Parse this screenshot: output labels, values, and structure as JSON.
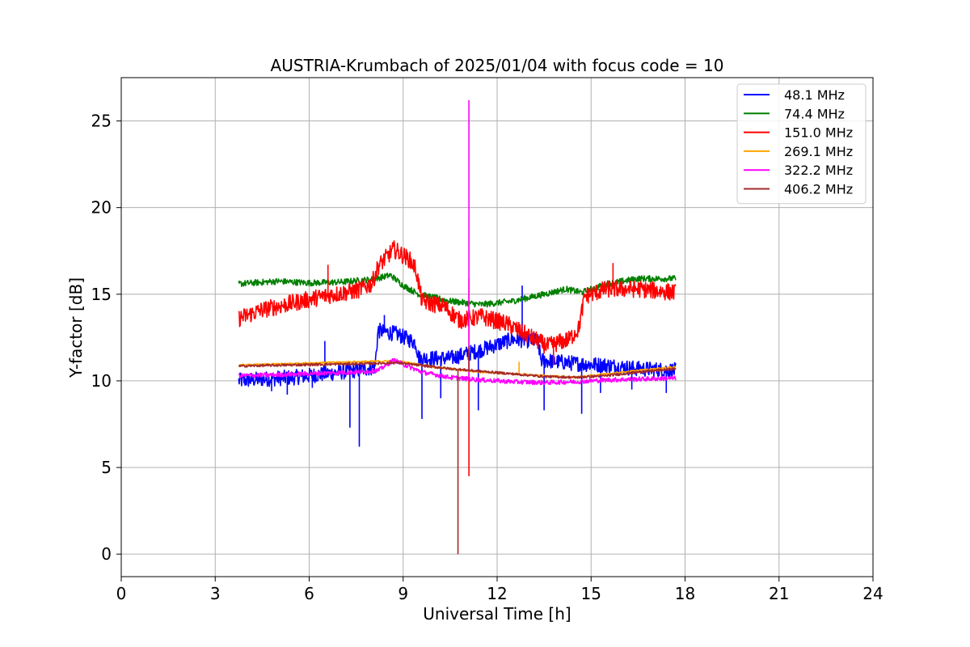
{
  "chart_data": {
    "type": "line",
    "title": "AUSTRIA-Krumbach of 2025/01/04 with focus code = 10",
    "xlabel": "Universal Time [h]",
    "ylabel": "Y-factor [dB]",
    "xlim": [
      0,
      24
    ],
    "ylim": [
      -1.3,
      27.5
    ],
    "x_ticks": [
      0,
      3,
      6,
      9,
      12,
      15,
      18,
      21,
      24
    ],
    "x_tick_labels": [
      "0",
      "3",
      "6",
      "9",
      "12",
      "15",
      "18",
      "21",
      "24"
    ],
    "y_ticks": [
      0,
      5,
      10,
      15,
      20,
      25
    ],
    "y_tick_labels": [
      "0",
      "5",
      "10",
      "15",
      "20",
      "25"
    ],
    "grid": true,
    "legend_position": "top-right",
    "series": [
      {
        "name": " 48.1 MHz",
        "color": "#0000ff",
        "points": [
          [
            3.75,
            10.0
          ],
          [
            4.5,
            10.1
          ],
          [
            5.5,
            10.2
          ],
          [
            6.5,
            10.4
          ],
          [
            7.5,
            10.6
          ],
          [
            8.1,
            10.8
          ],
          [
            8.2,
            12.9
          ],
          [
            8.8,
            12.7
          ],
          [
            9.4,
            12.2
          ],
          [
            9.5,
            11.3
          ],
          [
            10.5,
            11.3
          ],
          [
            11.5,
            11.8
          ],
          [
            12.5,
            12.4
          ],
          [
            13.3,
            12.3
          ],
          [
            13.4,
            11.2
          ],
          [
            14.5,
            11.0
          ],
          [
            15.5,
            10.9
          ],
          [
            16.5,
            10.7
          ],
          [
            17.7,
            10.6
          ]
        ],
        "noise": 0.45,
        "spikes": [
          [
            4.8,
            9.4
          ],
          [
            5.3,
            9.2
          ],
          [
            6.1,
            9.6
          ],
          [
            7.3,
            7.3
          ],
          [
            7.6,
            6.2
          ],
          [
            8.4,
            13.8
          ],
          [
            9.6,
            7.8
          ],
          [
            10.2,
            9.0
          ],
          [
            11.4,
            8.3
          ],
          [
            13.5,
            8.3
          ],
          [
            14.7,
            8.1
          ],
          [
            15.3,
            9.3
          ],
          [
            16.3,
            9.5
          ],
          [
            17.4,
            9.3
          ],
          [
            6.5,
            12.3
          ],
          [
            12.8,
            15.5
          ]
        ]
      },
      {
        "name": " 74.4 MHz",
        "color": "#008000",
        "points": [
          [
            3.75,
            15.6
          ],
          [
            5.0,
            15.75
          ],
          [
            6.0,
            15.65
          ],
          [
            7.0,
            15.7
          ],
          [
            8.0,
            15.85
          ],
          [
            8.6,
            16.1
          ],
          [
            9.0,
            15.5
          ],
          [
            9.5,
            15.0
          ],
          [
            10.5,
            14.6
          ],
          [
            11.5,
            14.4
          ],
          [
            12.5,
            14.6
          ],
          [
            13.5,
            15.0
          ],
          [
            14.2,
            15.3
          ],
          [
            14.7,
            15.1
          ],
          [
            15.5,
            15.6
          ],
          [
            16.5,
            15.9
          ],
          [
            17.7,
            15.9
          ]
        ],
        "noise": 0.18,
        "spikes": []
      },
      {
        "name": " 151.0 MHz",
        "color": "#ff0000",
        "points": [
          [
            3.75,
            13.6
          ],
          [
            4.5,
            14.1
          ],
          [
            5.5,
            14.5
          ],
          [
            6.5,
            14.9
          ],
          [
            7.5,
            15.2
          ],
          [
            8.0,
            15.6
          ],
          [
            8.2,
            16.6
          ],
          [
            8.7,
            17.6
          ],
          [
            9.2,
            17.0
          ],
          [
            9.4,
            16.5
          ],
          [
            9.6,
            14.6
          ],
          [
            10.3,
            14.3
          ],
          [
            10.8,
            13.5
          ],
          [
            11.5,
            13.7
          ],
          [
            12.3,
            13.3
          ],
          [
            13.0,
            12.6
          ],
          [
            13.6,
            12.0
          ],
          [
            14.3,
            12.4
          ],
          [
            14.6,
            13.0
          ],
          [
            14.8,
            14.9
          ],
          [
            15.5,
            15.3
          ],
          [
            16.5,
            15.3
          ],
          [
            17.7,
            15.1
          ]
        ],
        "noise": 0.5,
        "spikes": [
          [
            11.1,
            4.5
          ],
          [
            11.1,
            15.9
          ],
          [
            13.8,
            10.9
          ],
          [
            15.7,
            16.8
          ],
          [
            6.6,
            16.7
          ]
        ]
      },
      {
        "name": " 269.1 MHz",
        "color": "#ffa500",
        "points": [
          [
            3.75,
            10.9
          ],
          [
            5.5,
            11.0
          ],
          [
            7.5,
            11.1
          ],
          [
            8.8,
            11.15
          ],
          [
            10.0,
            10.8
          ],
          [
            11.5,
            10.5
          ],
          [
            12.5,
            10.4
          ],
          [
            13.5,
            10.3
          ],
          [
            14.5,
            10.2
          ],
          [
            15.5,
            10.4
          ],
          [
            16.5,
            10.6
          ],
          [
            17.7,
            10.8
          ]
        ],
        "noise": 0.05,
        "spikes": [
          [
            12.7,
            11.1
          ]
        ]
      },
      {
        "name": " 322.2 MHz",
        "color": "#ff00ff",
        "points": [
          [
            3.75,
            10.3
          ],
          [
            5.0,
            10.35
          ],
          [
            6.5,
            10.45
          ],
          [
            7.5,
            10.5
          ],
          [
            8.2,
            10.6
          ],
          [
            8.7,
            11.2
          ],
          [
            9.2,
            10.8
          ],
          [
            9.6,
            10.5
          ],
          [
            10.5,
            10.2
          ],
          [
            11.5,
            10.05
          ],
          [
            12.5,
            9.95
          ],
          [
            13.5,
            9.9
          ],
          [
            14.5,
            9.95
          ],
          [
            15.5,
            10.05
          ],
          [
            16.5,
            10.1
          ],
          [
            17.7,
            10.15
          ]
        ],
        "noise": 0.13,
        "spikes": [
          [
            11.1,
            26.2
          ]
        ]
      },
      {
        "name": " 406.2 MHz",
        "color": "#a52a2a",
        "points": [
          [
            3.75,
            10.85
          ],
          [
            5.0,
            10.9
          ],
          [
            6.5,
            10.95
          ],
          [
            8.0,
            11.0
          ],
          [
            8.8,
            11.05
          ],
          [
            9.5,
            10.9
          ],
          [
            10.5,
            10.7
          ],
          [
            11.5,
            10.55
          ],
          [
            12.5,
            10.4
          ],
          [
            13.5,
            10.25
          ],
          [
            14.5,
            10.2
          ],
          [
            15.5,
            10.3
          ],
          [
            16.5,
            10.5
          ],
          [
            17.7,
            10.7
          ]
        ],
        "noise": 0.07,
        "spikes": [
          [
            10.75,
            0.0
          ],
          [
            11.1,
            12.0
          ]
        ]
      }
    ]
  }
}
